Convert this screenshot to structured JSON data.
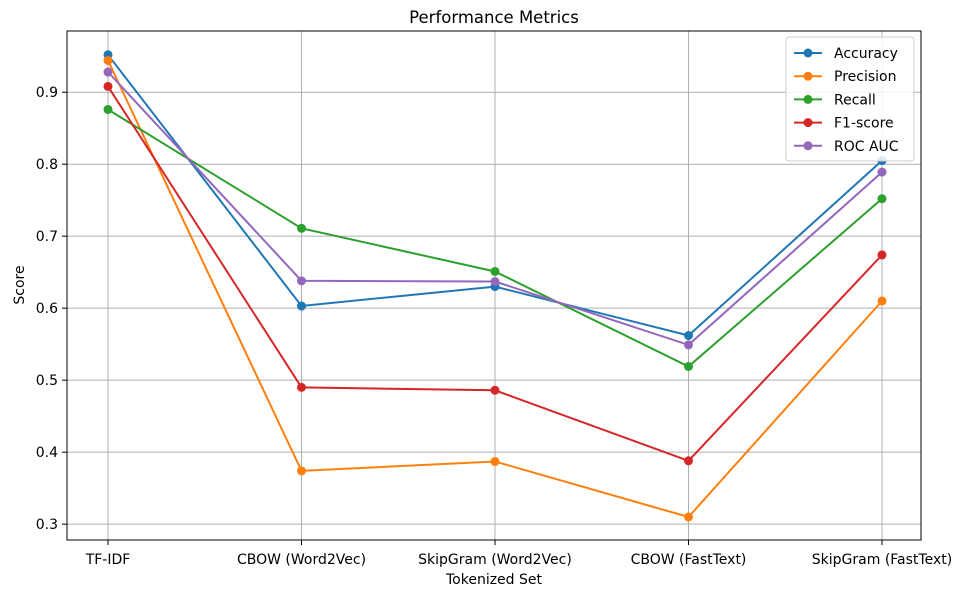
{
  "chart_data": {
    "type": "line",
    "title": "Performance Metrics",
    "xlabel": "Tokenized Set",
    "ylabel": "Score",
    "categories": [
      "TF-IDF",
      "CBOW (Word2Vec)",
      "SkipGram (Word2Vec)",
      "CBOW (FastText)",
      "SkipGram (FastText)"
    ],
    "yticks": [
      "0.3",
      "0.4",
      "0.5",
      "0.6",
      "0.7",
      "0.8",
      "0.9"
    ],
    "ylim": [
      0.278,
      0.985
    ],
    "grid": true,
    "legend_position": "top-right",
    "series": [
      {
        "name": "Accuracy",
        "color": "#1f77b4",
        "values": [
          0.952,
          0.603,
          0.63,
          0.562,
          0.805
        ]
      },
      {
        "name": "Precision",
        "color": "#ff7f0e",
        "values": [
          0.944,
          0.374,
          0.387,
          0.31,
          0.61
        ]
      },
      {
        "name": "Recall",
        "color": "#2ca02c",
        "values": [
          0.876,
          0.711,
          0.651,
          0.519,
          0.752
        ]
      },
      {
        "name": "F1-score",
        "color": "#d62728",
        "values": [
          0.908,
          0.49,
          0.486,
          0.388,
          0.674
        ]
      },
      {
        "name": "ROC AUC",
        "color": "#9467bd",
        "values": [
          0.928,
          0.638,
          0.637,
          0.549,
          0.789
        ]
      }
    ]
  }
}
